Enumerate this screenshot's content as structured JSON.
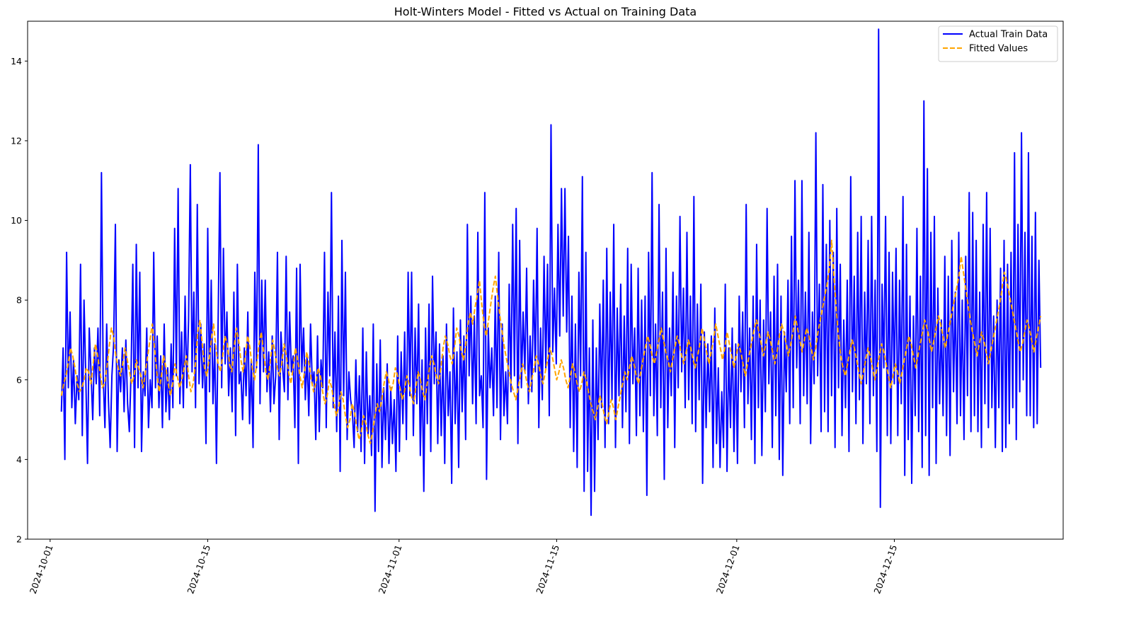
{
  "chart_data": {
    "type": "line",
    "title": "Holt-Winters Model - Fitted vs Actual on Training Data",
    "xlabel": "",
    "ylabel": "",
    "xlim": [
      "2024-09-29",
      "2024-12-30"
    ],
    "ylim": [
      2,
      15
    ],
    "x_ticks": [
      "2024-10-01",
      "2024-10-15",
      "2024-11-01",
      "2024-11-15",
      "2024-12-01",
      "2024-12-15"
    ],
    "y_ticks": [
      "2",
      "4",
      "6",
      "8",
      "10",
      "12",
      "14"
    ],
    "x_tick_values": [
      "2024-10-01",
      "2024-10-15",
      "2024-11-01",
      "2024-11-15",
      "2024-12-01",
      "2024-12-15"
    ],
    "y_tick_values": [
      2,
      4,
      6,
      8,
      10,
      12,
      14
    ],
    "legend": {
      "position": "top-right"
    },
    "x_start": "2024-10-02",
    "x_end": "2024-12-28",
    "series": [
      {
        "name": "Actual Train Data",
        "color": "#0000ff",
        "style": "solid",
        "values": [
          5.2,
          6.8,
          4,
          9.2,
          5.8,
          7.7,
          5.3,
          6.5,
          4.9,
          6.1,
          5.5,
          8.9,
          4.6,
          8,
          6.1,
          3.9,
          7.3,
          6.2,
          5,
          6.8,
          5.9,
          7.3,
          5.1,
          11.2,
          6.1,
          4.8,
          7.4,
          5.5,
          4.3,
          6.1,
          6.9,
          9.9,
          4.2,
          6.5,
          5.7,
          6.8,
          5.2,
          7,
          5.4,
          4.7,
          6.2,
          8.9,
          4.3,
          9.4,
          5.8,
          8.7,
          4.2,
          6.2,
          5.6,
          7.3,
          4.8,
          6,
          5.3,
          9.2,
          5.8,
          7.1,
          5.3,
          6.6,
          4.8,
          7.4,
          5.2,
          6.3,
          5,
          6.9,
          5.3,
          9.8,
          6.1,
          10.8,
          5.4,
          7.2,
          5.3,
          8.1,
          5.8,
          7.5,
          11.4,
          6.2,
          8.2,
          5.3,
          10.4,
          5.9,
          7.4,
          5.8,
          6.9,
          4.4,
          9.8,
          5.7,
          8.5,
          5.4,
          6.9,
          3.9,
          7.6,
          11.2,
          5.8,
          9.3,
          6.4,
          7.7,
          5.6,
          6.8,
          5.2,
          8.2,
          4.6,
          8.9,
          5.9,
          6.2,
          5,
          6.8,
          5.6,
          7.7,
          4.9,
          6.5,
          4.3,
          8.7,
          6.3,
          11.9,
          5.4,
          8.5,
          6.2,
          8.5,
          5.7,
          6.7,
          5.2,
          7.1,
          5.4,
          6.1,
          9.2,
          4.5,
          7.2,
          6.3,
          5.7,
          9.1,
          5.5,
          7.7,
          6.2,
          6.6,
          4.8,
          8.8,
          3.9,
          8.9,
          6.2,
          7.3,
          5.5,
          6.6,
          5.1,
          7.4,
          5.9,
          6.2,
          4.5,
          7.1,
          4.7,
          6.5,
          5.8,
          9.2,
          4.8,
          8.2,
          6.1,
          10.7,
          5.3,
          7.2,
          4.7,
          8.1,
          3.7,
          9.5,
          5.6,
          8.7,
          4.5,
          6.2,
          5.5,
          5.2,
          4.3,
          6.5,
          4.7,
          6.1,
          4.2,
          7.3,
          3.9,
          6.7,
          4.6,
          5.6,
          4.1,
          7.4,
          2.7,
          6.4,
          4.2,
          7,
          3.8,
          5.8,
          4.5,
          6.4,
          3.9,
          5.8,
          4.4,
          5.5,
          3.7,
          7.1,
          4.2,
          6.7,
          4.9,
          7.2,
          4.5,
          8.7,
          5.6,
          8.7,
          4.6,
          7.3,
          5.4,
          7.9,
          4.1,
          6.5,
          3.2,
          7.3,
          4.9,
          7.9,
          4.2,
          8.6,
          5.9,
          7.2,
          4.4,
          6.9,
          4.6,
          6.6,
          3.9,
          7.4,
          5.1,
          6.2,
          3.4,
          7.8,
          4.9,
          6.7,
          3.8,
          7.5,
          5.2,
          7.1,
          4.5,
          9.9,
          6.1,
          8.1,
          5.4,
          7.6,
          4.9,
          9.7,
          5.6,
          6.1,
          4.8,
          10.7,
          3.5,
          7.3,
          5.8,
          6.8,
          5.1,
          8.1,
          5.3,
          9.2,
          4.5,
          7.4,
          5.1,
          6.2,
          4.9,
          8.4,
          5.7,
          9.9,
          6.1,
          10.3,
          4.4,
          9.5,
          5.8,
          7.7,
          6.2,
          8.8,
          5.4,
          7.1,
          5.7,
          8.5,
          6.2,
          9.8,
          4.8,
          7.3,
          5.5,
          9.1,
          6.3,
          8.9,
          5.1,
          12.4,
          6.7,
          8.3,
          6.4,
          9.9,
          7.1,
          10.8,
          7.6,
          10.8,
          7.2,
          9.6,
          4.8,
          8.1,
          4.2,
          7.4,
          3.8,
          8.7,
          6.1,
          11.1,
          3.2,
          9.2,
          3.7,
          6.8,
          2.6,
          7.5,
          3.2,
          6.8,
          4.5,
          7.9,
          5.3,
          8.5,
          4.3,
          9.3,
          4.9,
          8.2,
          5.5,
          9.9,
          4.3,
          7.8,
          5.6,
          8.4,
          4.8,
          7.6,
          5.2,
          9.3,
          4.4,
          8.9,
          5.9,
          7.3,
          4.6,
          8.8,
          5.1,
          8,
          4.7,
          8.1,
          3.1,
          9.2,
          5.6,
          11.2,
          5.1,
          7.4,
          4.6,
          10.4,
          5.3,
          8.2,
          3.5,
          9.3,
          4.8,
          7.3,
          5.6,
          8.7,
          4.3,
          8.1,
          5.8,
          10.1,
          6.2,
          8.3,
          5.3,
          9.7,
          5.5,
          8.1,
          4.9,
          10.6,
          4.7,
          7.9,
          5.5,
          8.4,
          3.4,
          7.2,
          4.8,
          6.9,
          5.2,
          7.1,
          3.8,
          7.8,
          4.4,
          6.3,
          3.8,
          5.7,
          4.3,
          8.4,
          3.7,
          6.8,
          4.8,
          7.3,
          4.2,
          6.9,
          3.9,
          8.1,
          5.7,
          7.7,
          4.8,
          10.4,
          5.4,
          7.3,
          4.5,
          8.1,
          3.9,
          9.4,
          5.3,
          8,
          4.1,
          7.5,
          5.2,
          10.3,
          5.9,
          7.7,
          4.3,
          8.6,
          5.1,
          8.9,
          4,
          8.1,
          3.6,
          7.2,
          5.7,
          8.5,
          4.9,
          9.6,
          5.3,
          11,
          6.3,
          8.5,
          4.9,
          11,
          5.6,
          8.2,
          5.4,
          9.7,
          4.4,
          7.7,
          5.9,
          12.2,
          6.1,
          8.4,
          4.7,
          10.9,
          5.2,
          9.4,
          4.7,
          10,
          5.6,
          9.2,
          4.3,
          10.3,
          5.8,
          8.9,
          4.6,
          7.5,
          5.3,
          8.5,
          4.2,
          11.1,
          5.7,
          8.6,
          4.9,
          9.7,
          5.5,
          10.1,
          4.4,
          8.2,
          5.9,
          9.5,
          4.9,
          10.1,
          5.6,
          8.5,
          4.2,
          14.8,
          2.8,
          8.4,
          6.3,
          10.1,
          4.6,
          9.2,
          4.4,
          8.7,
          5.9,
          9.3,
          4.6,
          8.5,
          5.4,
          10.6,
          3.6,
          9.4,
          4.5,
          8.1,
          3.4,
          7.6,
          5.1,
          9.8,
          4.7,
          8.6,
          3.8,
          13,
          4.6,
          11.3,
          3.6,
          9.7,
          5.3,
          10.1,
          3.9,
          8.3,
          5.4,
          7.5,
          5.1,
          9.1,
          4.6,
          8.6,
          4.1,
          9.5,
          5.7,
          8.2,
          4.9,
          9.7,
          5.1,
          8,
          4.5,
          9.1,
          5.6,
          10.7,
          4.7,
          10.2,
          5.1,
          9.5,
          4.7,
          8.2,
          4.3,
          9.9,
          5.4,
          10.7,
          4.8,
          9.8,
          5.3,
          7.6,
          4.3,
          8,
          5.3,
          8.8,
          4.2,
          9.5,
          4.3,
          8.9,
          4.9,
          9.2,
          5.3,
          11.7,
          4.5,
          9.9,
          5.7,
          12.2,
          6,
          9.7,
          5.1,
          11.7,
          5.1,
          9.6,
          4.8,
          10.2,
          4.9,
          9,
          6.3
        ],
        "data_name": "actual-series-line"
      },
      {
        "name": "Fitted Values",
        "color": "#ffa500",
        "style": "dashed",
        "values": [
          5.6,
          5.9,
          6.1,
          6.4,
          6.8,
          6.6,
          6.3,
          5.9,
          5.7,
          5.8,
          6,
          6.3,
          6.2,
          5.9,
          6.4,
          6.9,
          6.6,
          6.2,
          5.8,
          5.9,
          6.3,
          6.8,
          7.3,
          7.1,
          6.6,
          6.3,
          6.1,
          6.4,
          6.8,
          6.5,
          6.2,
          5.9,
          6.1,
          6.5,
          6.3,
          6.1,
          5.8,
          6.2,
          6.6,
          7,
          7.4,
          6.8,
          6.2,
          5.7,
          6.1,
          6.6,
          6.3,
          5.9,
          5.6,
          5.9,
          6.4,
          6.1,
          5.8,
          6,
          6.3,
          6.6,
          6.1,
          5.7,
          5.9,
          6.4,
          7.2,
          7.5,
          6.9,
          6.3,
          6.1,
          6.5,
          7,
          7.4,
          6.8,
          6.4,
          6.2,
          6.6,
          7.1,
          6.9,
          6.4,
          6.2,
          6.8,
          7.3,
          7,
          6.5,
          6.2,
          6.6,
          7.1,
          6.8,
          6.3,
          6,
          6.4,
          6.9,
          7.2,
          6.7,
          6.2,
          6,
          6.5,
          7,
          6.7,
          6.3,
          6.1,
          6.4,
          6.9,
          6.6,
          6.2,
          5.9,
          6.3,
          6.8,
          6.5,
          6.1,
          5.8,
          6.2,
          6.7,
          6.4,
          6,
          5.7,
          5.9,
          6.3,
          6.1,
          5.7,
          5.4,
          5.6,
          6,
          5.8,
          5.4,
          5.1,
          5.3,
          5.7,
          5.5,
          5.1,
          4.8,
          5,
          5.4,
          5.2,
          4.8,
          4.5,
          4.7,
          5.1,
          4.9,
          4.6,
          4.4,
          4.7,
          5.1,
          5.4,
          5.2,
          5.5,
          5.9,
          6.2,
          6,
          5.7,
          5.9,
          6.3,
          6.1,
          5.8,
          5.5,
          5.7,
          6.1,
          5.9,
          5.6,
          5.4,
          5.8,
          6.2,
          6,
          5.7,
          5.5,
          5.9,
          6.3,
          6.6,
          6.4,
          6.1,
          5.9,
          6.3,
          6.8,
          7.1,
          6.9,
          6.6,
          6.4,
          6.8,
          7.3,
          7.1,
          6.7,
          6.5,
          6.9,
          7.4,
          7.7,
          7.4,
          7.8,
          8.1,
          8.5,
          7.9,
          7.4,
          7.1,
          7.5,
          7.9,
          8.3,
          8.6,
          8.1,
          7.6,
          7.2,
          6.8,
          6.5,
          6.2,
          5.9,
          5.7,
          5.5,
          5.8,
          6.1,
          6.4,
          6.2,
          5.9,
          5.7,
          6,
          6.3,
          6.6,
          6.4,
          6.1,
          5.9,
          6.2,
          6.5,
          6.8,
          6.6,
          6.3,
          6,
          6.2,
          6.5,
          6.3,
          6,
          5.8,
          6.1,
          6.4,
          6.2,
          5.9,
          5.7,
          5.9,
          6.2,
          6,
          5.7,
          5.4,
          5.2,
          5,
          5.3,
          5.6,
          5.4,
          5.1,
          4.9,
          5.2,
          5.5,
          5.3,
          5,
          5.3,
          5.6,
          5.9,
          6.2,
          6,
          6.3,
          6.6,
          6.4,
          6.1,
          5.9,
          6.2,
          6.5,
          6.8,
          7.1,
          6.9,
          6.6,
          6.4,
          6.7,
          7,
          7.3,
          7,
          6.7,
          6.5,
          6.2,
          6.5,
          6.8,
          7.1,
          6.9,
          6.6,
          6.4,
          6.7,
          7,
          6.8,
          6.5,
          6.3,
          6.6,
          6.9,
          7.3,
          7,
          6.7,
          6.4,
          6.7,
          7,
          7.4,
          7.1,
          6.8,
          6.5,
          6.8,
          7.2,
          6.9,
          6.6,
          6.3,
          6.6,
          6.9,
          6.7,
          6.4,
          6.1,
          6.4,
          6.7,
          7,
          7.3,
          7.5,
          7.2,
          6.9,
          6.6,
          6.9,
          7.2,
          7,
          6.7,
          6.4,
          6.7,
          7.1,
          7.4,
          7.2,
          6.9,
          6.6,
          6.9,
          7.2,
          7.6,
          7.3,
          7,
          6.7,
          7,
          7.3,
          7.1,
          6.8,
          6.5,
          6.8,
          7.2,
          7.5,
          7.8,
          8.1,
          8.4,
          8.8,
          9.5,
          8.6,
          7.8,
          7.1,
          6.6,
          6.3,
          6.1,
          6.4,
          6.7,
          7,
          6.8,
          6.5,
          6.2,
          5.9,
          6.2,
          6.5,
          6.8,
          6.6,
          6.3,
          6,
          6.3,
          6.6,
          6.9,
          6.7,
          6.4,
          6.1,
          5.8,
          6.1,
          6.4,
          6.2,
          5.9,
          6.2,
          6.5,
          6.8,
          7.1,
          6.9,
          6.6,
          6.3,
          6.6,
          6.9,
          7.2,
          7.5,
          7.3,
          7,
          6.7,
          7,
          7.3,
          7.6,
          7.4,
          7.1,
          6.8,
          7.1,
          7.4,
          7.7,
          8,
          8.3,
          8.6,
          9.1,
          8.7,
          8.3,
          7.9,
          7.5,
          7.2,
          6.9,
          6.6,
          6.9,
          7.2,
          7,
          6.7,
          6.4,
          6.7,
          7,
          7.3,
          7.6,
          7.9,
          8.3,
          8.7,
          8.5,
          8.2,
          7.9,
          7.6,
          7.3,
          7,
          6.7,
          6.9,
          7.2,
          7.5,
          7.3,
          7,
          6.7,
          7,
          7.3,
          7.6
        ],
        "data_name": "fitted-series-line"
      }
    ]
  }
}
